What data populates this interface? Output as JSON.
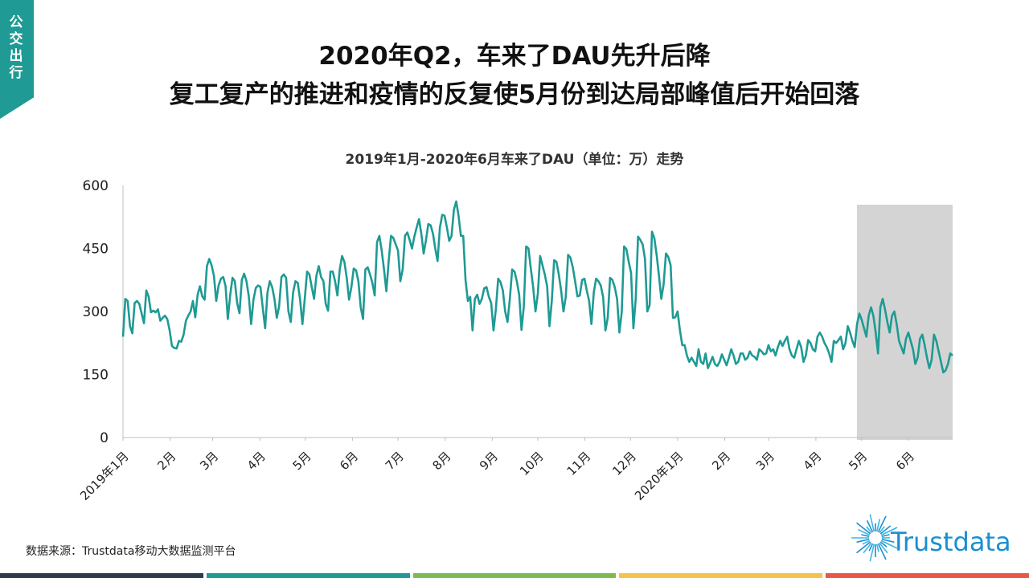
{
  "side_tab": "公交出行",
  "title_line1": "2020年Q2，车来了DAU先升后降",
  "title_line2": "复工复产的推进和疫情的反复使5月份到达局部峰值后开始回落",
  "source": "数据来源：Trustdata移动大数据监测平台",
  "logo_text": "Trustdata",
  "footer_colors": [
    "#2c3a4c",
    "#1f9a94",
    "#7dba4f",
    "#f5c24b",
    "#e8584a"
  ],
  "chart_data": {
    "type": "line",
    "title": "2019年1月-2020年6月车来了DAU（单位：万）走势",
    "xlabel": "",
    "ylabel": "",
    "ylim": [
      0,
      600
    ],
    "yticks": [
      0,
      150,
      300,
      450,
      600
    ],
    "line_color": "#1f9a94",
    "month_labels": [
      "2019年1月",
      "2月",
      "3月",
      "4月",
      "5月",
      "6月",
      "7月",
      "8月",
      "9月",
      "10月",
      "11月",
      "12月",
      "2020年1月",
      "2月",
      "3月",
      "4月",
      "5月",
      "6月"
    ],
    "shaded_region": {
      "from": "2020-04-28",
      "to": "2020-06-30",
      "color": "#d4d4d4"
    },
    "series": [
      {
        "values": [
          240,
          330,
          325,
          265,
          248,
          320,
          325,
          318,
          295,
          272,
          350,
          335,
          298,
          302,
          298,
          305,
          278,
          285,
          290,
          282,
          255,
          218,
          213,
          212,
          230,
          228,
          245,
          278,
          290,
          300,
          325,
          286,
          340,
          360,
          336,
          328,
          408,
          425,
          410,
          385,
          325,
          362,
          378,
          382,
          360,
          282,
          338,
          380,
          372,
          320,
          296,
          375,
          390,
          372,
          336,
          270,
          328,
          356,
          362,
          358,
          308,
          260,
          345,
          372,
          358,
          330,
          285,
          312,
          382,
          388,
          380,
          300,
          275,
          345,
          372,
          368,
          328,
          270,
          330,
          395,
          388,
          358,
          330,
          385,
          408,
          382,
          372,
          318,
          302,
          395,
          395,
          372,
          338,
          400,
          432,
          418,
          380,
          328,
          358,
          402,
          398,
          372,
          310,
          282,
          400,
          405,
          388,
          368,
          338,
          465,
          480,
          445,
          400,
          348,
          420,
          480,
          475,
          460,
          445,
          372,
          400,
          480,
          488,
          470,
          450,
          478,
          500,
          520,
          485,
          438,
          470,
          508,
          505,
          485,
          450,
          420,
          500,
          530,
          528,
          500,
          468,
          480,
          542,
          562,
          528,
          480,
          480,
          375,
          325,
          335,
          255,
          330,
          340,
          318,
          330,
          355,
          358,
          335,
          320,
          255,
          305,
          378,
          370,
          350,
          300,
          275,
          330,
          400,
          395,
          372,
          340,
          256,
          312,
          455,
          450,
          402,
          358,
          300,
          342,
          432,
          410,
          388,
          360,
          265,
          325,
          422,
          418,
          388,
          350,
          300,
          335,
          435,
          428,
          405,
          372,
          336,
          338,
          375,
          378,
          350,
          325,
          270,
          345,
          378,
          372,
          362,
          335,
          255,
          285,
          380,
          375,
          358,
          330,
          250,
          298,
          455,
          448,
          418,
          392,
          260,
          330,
          478,
          470,
          460,
          425,
          300,
          315,
          490,
          475,
          435,
          385,
          330,
          365,
          438,
          430,
          410,
          285,
          286,
          300,
          255,
          220,
          220,
          195,
          180,
          190,
          180,
          170,
          210,
          180,
          175,
          200,
          165,
          178,
          192,
          175,
          170,
          180,
          198,
          185,
          172,
          190,
          210,
          195,
          175,
          180,
          200,
          200,
          185,
          190,
          205,
          195,
          192,
          185,
          210,
          205,
          198,
          200,
          220,
          205,
          210,
          195,
          215,
          230,
          218,
          230,
          240,
          210,
          195,
          190,
          210,
          230,
          215,
          180,
          195,
          232,
          225,
          210,
          205,
          240,
          250,
          240,
          225,
          215,
          200,
          180,
          230,
          225,
          232,
          240,
          210,
          225,
          265,
          250,
          230,
          215,
          270,
          295,
          280,
          260,
          240,
          290,
          310,
          290,
          250,
          200,
          310,
          330,
          305,
          275,
          250,
          290,
          300,
          270,
          230,
          215,
          200,
          235,
          250,
          230,
          210,
          175,
          190,
          235,
          245,
          220,
          190,
          165,
          185,
          245,
          230,
          205,
          180,
          155,
          160,
          175,
          200,
          195
        ]
      }
    ]
  }
}
